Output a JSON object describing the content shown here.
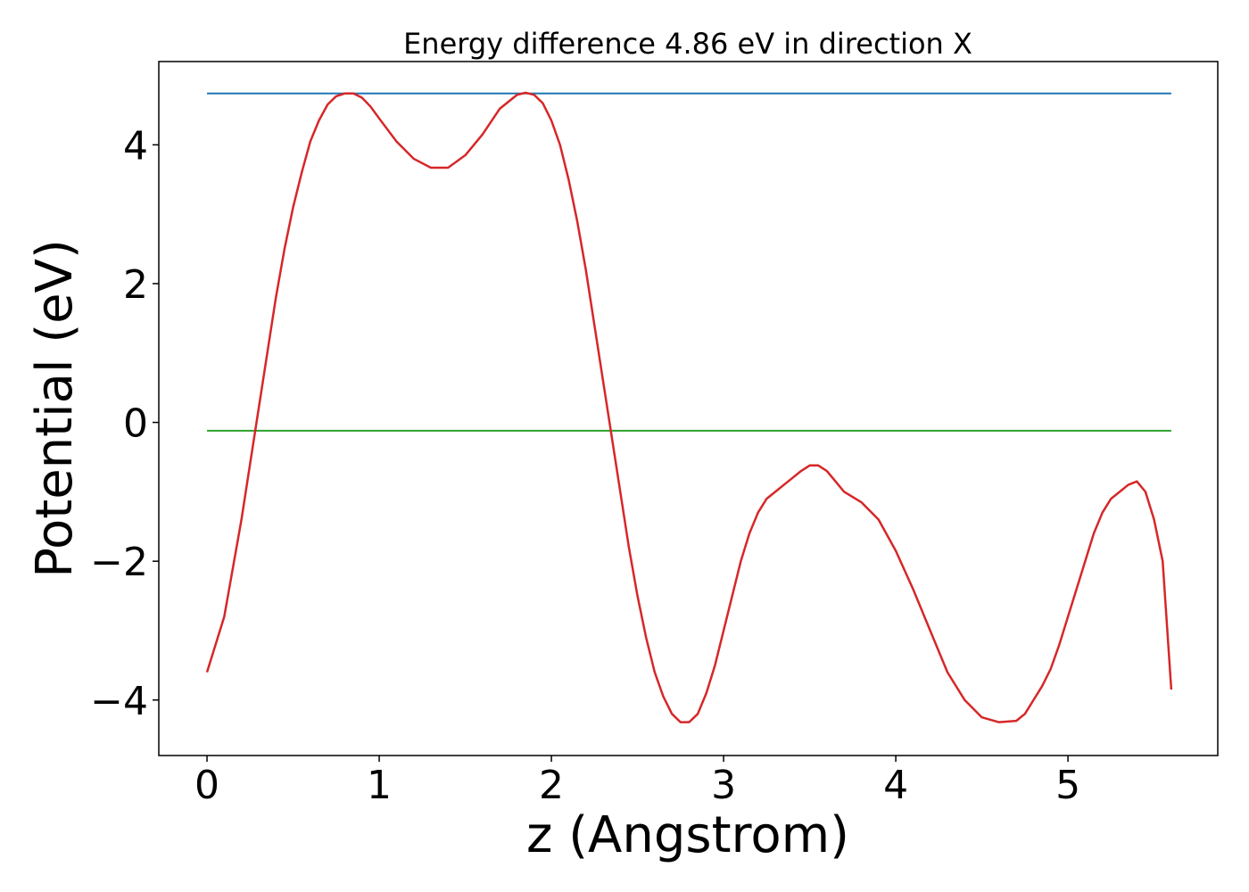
{
  "chart_data": {
    "type": "line",
    "title": "Energy difference 4.86 eV in direction X",
    "xlabel": "z (Angstrom)",
    "ylabel": "Potential (eV)",
    "xlim": [
      -0.28,
      5.87
    ],
    "ylim": [
      -4.8,
      5.2
    ],
    "xticks": [
      0,
      1,
      2,
      3,
      4,
      5
    ],
    "yticks": [
      -4,
      -2,
      0,
      2,
      4
    ],
    "xtick_labels": [
      "0",
      "1",
      "2",
      "3",
      "4",
      "5"
    ],
    "ytick_labels": [
      "−4",
      "−2",
      "0",
      "2",
      "4"
    ],
    "grid": false,
    "legend": "none",
    "series": [
      {
        "color": "#1f77b4",
        "x": [
          0,
          5.6
        ],
        "y": [
          4.74,
          4.74
        ]
      },
      {
        "color": "#2ca02c",
        "x": [
          0,
          5.6
        ],
        "y": [
          -0.12,
          -0.12
        ]
      },
      {
        "color": "#d62728",
        "x": [
          0.0,
          0.05,
          0.1,
          0.15,
          0.2,
          0.25,
          0.3,
          0.35,
          0.4,
          0.45,
          0.5,
          0.55,
          0.6,
          0.65,
          0.7,
          0.75,
          0.8,
          0.85,
          0.9,
          0.95,
          1.0,
          1.1,
          1.2,
          1.3,
          1.4,
          1.5,
          1.6,
          1.7,
          1.8,
          1.85,
          1.9,
          1.95,
          2.0,
          2.05,
          2.1,
          2.15,
          2.2,
          2.25,
          2.3,
          2.35,
          2.4,
          2.45,
          2.5,
          2.55,
          2.6,
          2.65,
          2.7,
          2.75,
          2.8,
          2.85,
          2.9,
          2.95,
          3.0,
          3.05,
          3.1,
          3.15,
          3.2,
          3.25,
          3.3,
          3.35,
          3.4,
          3.45,
          3.5,
          3.55,
          3.6,
          3.65,
          3.7,
          3.8,
          3.9,
          4.0,
          4.1,
          4.2,
          4.3,
          4.4,
          4.5,
          4.6,
          4.7,
          4.75,
          4.8,
          4.85,
          4.9,
          4.95,
          5.0,
          5.05,
          5.1,
          5.15,
          5.2,
          5.25,
          5.3,
          5.35,
          5.4,
          5.45,
          5.5,
          5.55,
          5.6
        ],
        "y": [
          -3.6,
          -3.2,
          -2.8,
          -2.1,
          -1.4,
          -0.6,
          0.2,
          1.0,
          1.8,
          2.5,
          3.1,
          3.6,
          4.05,
          4.35,
          4.58,
          4.7,
          4.74,
          4.74,
          4.68,
          4.55,
          4.38,
          4.05,
          3.8,
          3.67,
          3.67,
          3.85,
          4.15,
          4.52,
          4.72,
          4.75,
          4.72,
          4.6,
          4.35,
          4.0,
          3.5,
          2.9,
          2.2,
          1.4,
          0.6,
          -0.2,
          -1.0,
          -1.8,
          -2.5,
          -3.1,
          -3.6,
          -3.95,
          -4.2,
          -4.32,
          -4.32,
          -4.2,
          -3.9,
          -3.5,
          -3.0,
          -2.5,
          -2.0,
          -1.6,
          -1.3,
          -1.1,
          -1.0,
          -0.9,
          -0.8,
          -0.7,
          -0.62,
          -0.62,
          -0.7,
          -0.85,
          -1.0,
          -1.15,
          -1.4,
          -1.85,
          -2.4,
          -3.0,
          -3.6,
          -4.0,
          -4.25,
          -4.32,
          -4.3,
          -4.2,
          -4.0,
          -3.8,
          -3.55,
          -3.2,
          -2.8,
          -2.4,
          -2.0,
          -1.6,
          -1.3,
          -1.1,
          -1.0,
          -0.9,
          -0.85,
          -1.0,
          -1.4,
          -2.0,
          -3.85
        ]
      }
    ]
  }
}
